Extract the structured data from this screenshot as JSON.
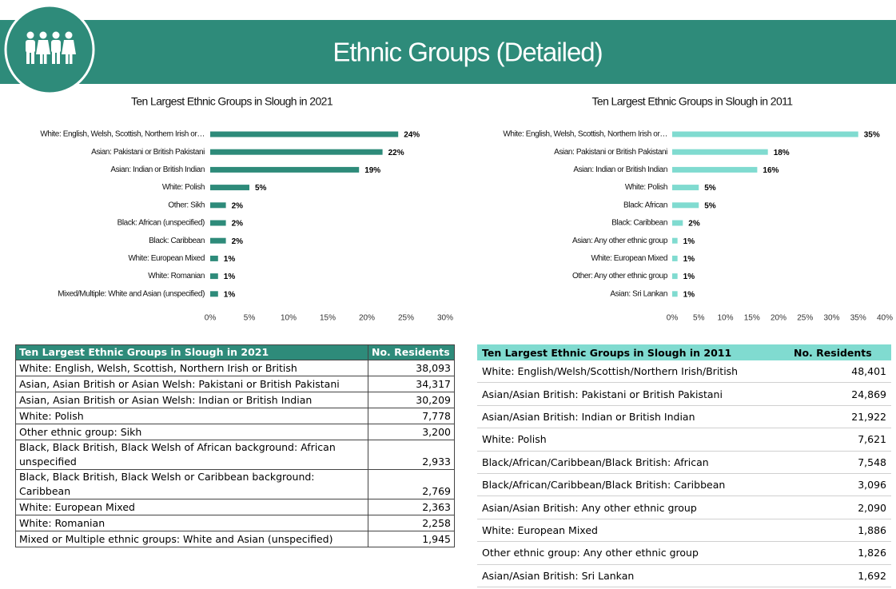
{
  "header": {
    "title": "Ethnic Groups (Detailed)"
  },
  "chart_data": [
    {
      "type": "bar",
      "orientation": "horizontal",
      "title": "Ten Largest Ethnic Groups in Slough in 2021",
      "categories": [
        "White: English, Welsh, Scottish, Northern Irish or…",
        "Asian: Pakistani or British Pakistani",
        "Asian: Indian or British Indian",
        "White: Polish",
        "Other: Sikh",
        "Black: African (unspecified)",
        "Black: Caribbean",
        "White: European Mixed",
        "White: Romanian",
        "Mixed/Multiple: White and Asian (unspecified)"
      ],
      "values": [
        24,
        22,
        19,
        5,
        2,
        2,
        2,
        1,
        1,
        1
      ],
      "value_labels": [
        "24%",
        "22%",
        "19%",
        "5%",
        "2%",
        "2%",
        "2%",
        "1%",
        "1%",
        "1%"
      ],
      "color": "#2e8b7a",
      "xlim": [
        0,
        30
      ],
      "xticks": [
        {
          "value": 0,
          "label": "0%"
        },
        {
          "value": 5,
          "label": "5%"
        },
        {
          "value": 10,
          "label": "10%"
        },
        {
          "value": 15,
          "label": "15%"
        },
        {
          "value": 20,
          "label": "20%"
        },
        {
          "value": 25,
          "label": "25%"
        },
        {
          "value": 30,
          "label": "30%"
        }
      ]
    },
    {
      "type": "bar",
      "orientation": "horizontal",
      "title": "Ten Largest Ethnic Groups in Slough in 2011",
      "categories": [
        "White: English, Welsh, Scottish, Northern Irish or…",
        "Asian: Pakistani or British Pakistani",
        "Asian: Indian or British Indian",
        "White: Polish",
        "Black: African",
        "Black: Caribbean",
        "Asian: Any other ethnic group",
        "White: European Mixed",
        "Other: Any other ethnic group",
        "Asian: Sri Lankan"
      ],
      "values": [
        35,
        18,
        16,
        5,
        5,
        2,
        1,
        1,
        1,
        1
      ],
      "value_labels": [
        "35%",
        "18%",
        "16%",
        "5%",
        "5%",
        "2%",
        "1%",
        "1%",
        "1%",
        "1%"
      ],
      "color": "#80dbd0",
      "xlim": [
        0,
        40
      ],
      "xticks": [
        {
          "value": 0,
          "label": "0%"
        },
        {
          "value": 5,
          "label": "5%"
        },
        {
          "value": 10,
          "label": "10%"
        },
        {
          "value": 15,
          "label": "15%"
        },
        {
          "value": 20,
          "label": "20%"
        },
        {
          "value": 25,
          "label": "25%"
        },
        {
          "value": 30,
          "label": "30%"
        },
        {
          "value": 35,
          "label": "35%"
        },
        {
          "value": 40,
          "label": "40%"
        }
      ]
    }
  ],
  "tables": [
    {
      "columns": [
        "Ten Largest Ethnic Groups in Slough in 2021",
        "No. Residents"
      ],
      "rows": [
        [
          "White: English, Welsh, Scottish, Northern Irish or British",
          "38,093"
        ],
        [
          "Asian, Asian British or Asian Welsh: Pakistani or British Pakistani",
          "34,317"
        ],
        [
          "Asian, Asian British or Asian Welsh: Indian or British Indian",
          "30,209"
        ],
        [
          "White: Polish",
          "7,778"
        ],
        [
          "Other ethnic group: Sikh",
          "3,200"
        ],
        [
          "Black, Black British, Black Welsh of African background: African unspecified",
          "2,933"
        ],
        [
          "Black, Black British, Black Welsh or Caribbean background: Caribbean",
          "2,769"
        ],
        [
          "White: European Mixed",
          "2,363"
        ],
        [
          "White: Romanian",
          "2,258"
        ],
        [
          "Mixed or Multiple ethnic groups: White and Asian (unspecified)",
          "1,945"
        ]
      ]
    },
    {
      "columns": [
        "Ten Largest Ethnic Groups in Slough in 2011",
        "No. Residents"
      ],
      "rows": [
        [
          "White: English/Welsh/Scottish/Northern Irish/British",
          "48,401"
        ],
        [
          "Asian/Asian British: Pakistani or British Pakistani",
          "24,869"
        ],
        [
          "Asian/Asian British: Indian or British Indian",
          "21,922"
        ],
        [
          "White: Polish",
          "7,621"
        ],
        [
          "Black/African/Caribbean/Black British: African",
          "7,548"
        ],
        [
          "Black/African/Caribbean/Black British: Caribbean",
          "3,096"
        ],
        [
          "Asian/Asian British: Any other ethnic group",
          "2,090"
        ],
        [
          "White: European Mixed",
          "1,886"
        ],
        [
          "Other ethnic group: Any other ethnic group",
          "1,826"
        ],
        [
          "Asian/Asian British: Sri Lankan",
          "1,692"
        ]
      ]
    }
  ]
}
